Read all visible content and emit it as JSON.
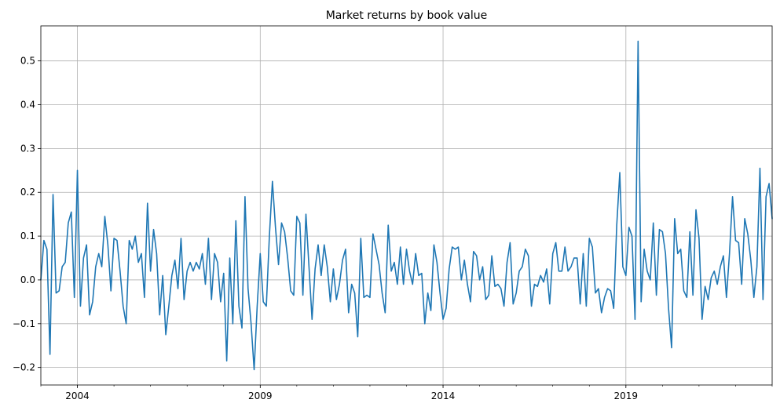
{
  "chart_data": {
    "type": "line",
    "title": "Market returns by book value",
    "xlabel": "",
    "ylabel": "",
    "x_range": [
      "2003-01",
      "2023-01"
    ],
    "ylim": [
      -0.24,
      0.58
    ],
    "grid": true,
    "legend": "none",
    "colors": {
      "line": "#1f77b4",
      "grid": "#b0b0b0"
    },
    "y_ticks": [
      -0.2,
      -0.1,
      0.0,
      0.1,
      0.2,
      0.3,
      0.4,
      0.5
    ],
    "y_tick_labels": [
      "−0.2",
      "−0.1",
      "0.0",
      "0.1",
      "0.2",
      "0.3",
      "0.4",
      "0.5"
    ],
    "x_ticks": [
      "2004-01",
      "2009-01",
      "2014-01",
      "2019-01"
    ],
    "x_tick_labels": [
      "2004",
      "2009",
      "2014",
      "2019"
    ],
    "series": [
      {
        "start": "2003-01",
        "frequency": "monthly",
        "values": [
          0.0,
          0.09,
          0.07,
          -0.17,
          0.195,
          -0.03,
          -0.025,
          0.03,
          0.04,
          0.13,
          0.155,
          -0.04,
          0.25,
          -0.06,
          0.05,
          0.08,
          -0.08,
          -0.05,
          0.03,
          0.06,
          0.03,
          0.145,
          0.08,
          -0.025,
          0.095,
          0.09,
          0.02,
          -0.06,
          -0.1,
          0.09,
          0.07,
          0.1,
          0.04,
          0.06,
          -0.04,
          0.175,
          0.02,
          0.115,
          0.06,
          -0.08,
          0.01,
          -0.125,
          -0.06,
          0.01,
          0.045,
          -0.02,
          0.095,
          -0.045,
          0.02,
          0.04,
          0.02,
          0.04,
          0.025,
          0.06,
          -0.01,
          0.095,
          -0.045,
          0.06,
          0.04,
          -0.05,
          0.015,
          -0.185,
          0.05,
          -0.1,
          0.135,
          -0.06,
          -0.11,
          0.19,
          -0.02,
          -0.1,
          -0.205,
          -0.06,
          0.06,
          -0.05,
          -0.06,
          0.1,
          0.225,
          0.12,
          0.035,
          0.13,
          0.11,
          0.05,
          -0.025,
          -0.035,
          0.145,
          0.13,
          -0.035,
          0.15,
          0.03,
          -0.09,
          0.025,
          0.08,
          0.01,
          0.08,
          0.03,
          -0.05,
          0.025,
          -0.045,
          -0.01,
          0.045,
          0.07,
          -0.075,
          -0.01,
          -0.03,
          -0.13,
          0.095,
          -0.04,
          -0.035,
          -0.04,
          0.105,
          0.07,
          0.035,
          -0.03,
          -0.075,
          0.125,
          0.02,
          0.04,
          -0.01,
          0.075,
          -0.01,
          0.07,
          0.02,
          -0.01,
          0.06,
          0.01,
          0.015,
          -0.1,
          -0.03,
          -0.07,
          0.08,
          0.04,
          -0.03,
          -0.09,
          -0.065,
          0.025,
          0.075,
          0.07,
          0.075,
          0.0,
          0.045,
          -0.01,
          -0.05,
          0.065,
          0.055,
          0.0,
          0.03,
          -0.045,
          -0.035,
          0.055,
          -0.015,
          -0.01,
          -0.02,
          -0.06,
          0.04,
          0.085,
          -0.055,
          -0.03,
          0.02,
          0.03,
          0.07,
          0.055,
          -0.06,
          -0.01,
          -0.015,
          0.01,
          -0.005,
          0.025,
          -0.055,
          0.06,
          0.085,
          0.02,
          0.02,
          0.075,
          0.02,
          0.03,
          0.05,
          0.05,
          -0.055,
          0.06,
          -0.06,
          0.095,
          0.075,
          -0.03,
          -0.02,
          -0.075,
          -0.04,
          -0.02,
          -0.025,
          -0.065,
          0.125,
          0.245,
          0.03,
          0.01,
          0.12,
          0.1,
          -0.09,
          0.545,
          -0.05,
          0.07,
          0.02,
          0.0,
          0.13,
          -0.035,
          0.115,
          0.11,
          0.06,
          -0.065,
          -0.155,
          0.14,
          0.06,
          0.07,
          -0.025,
          -0.04,
          0.11,
          -0.035,
          0.16,
          0.095,
          -0.09,
          -0.015,
          -0.045,
          0.005,
          0.02,
          -0.01,
          0.03,
          0.055,
          -0.04,
          0.06,
          0.19,
          0.09,
          0.085,
          -0.01,
          0.14,
          0.105,
          0.045,
          -0.04,
          0.03,
          0.255,
          -0.045,
          0.19,
          0.22,
          0.14
        ]
      }
    ]
  }
}
